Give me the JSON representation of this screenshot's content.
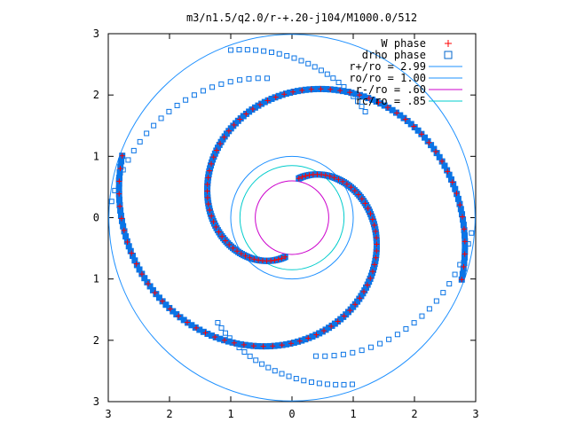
{
  "chart_data": {
    "type": "scatter",
    "title": "m3/n1.5/q2.0/r-+.20-j104/M1000.0/512",
    "xlim": [
      -3,
      3
    ],
    "ylim": [
      -3,
      3
    ],
    "x_ticks": [
      -3,
      -2,
      -1,
      0,
      1,
      2,
      3
    ],
    "y_ticks": [
      -3,
      -2,
      -1,
      0,
      1,
      2,
      3
    ],
    "x_tick_labels": [
      "3",
      "2",
      "1",
      "0",
      "1",
      "2",
      "3"
    ],
    "y_tick_labels": [
      "3",
      "2",
      "1",
      "0",
      "1",
      "2",
      "3"
    ],
    "grid": false,
    "legend_position": "top-right",
    "legend": [
      {
        "label": "W phase",
        "kind": "plus",
        "color": "#ff0000"
      },
      {
        "label": "drho phase",
        "kind": "square",
        "color": "#0066cc"
      },
      {
        "label": "r+/ro = 2.99",
        "kind": "line",
        "color": "#1e90ff",
        "radius": 2.99
      },
      {
        "label": "ro/ro = 1.00",
        "kind": "line",
        "color": "#1e90ff",
        "radius": 1.0
      },
      {
        "label": "r-/ro =  .60",
        "kind": "line",
        "color": "#cc00cc",
        "radius": 0.6
      },
      {
        "label": "rc/ro =  .85",
        "kind": "line",
        "color": "#00cccc",
        "radius": 0.85
      }
    ],
    "colors": {
      "w_phase": "#ff0000",
      "drho_phase": "#0a74e6",
      "axes": "#000000"
    },
    "series": [
      {
        "name": "drho phase",
        "arms": [
          {
            "r_start": 0.65,
            "r_end": 2.95,
            "theta_start_deg": 80,
            "theta_end_deg": -200
          },
          {
            "r_start": 0.65,
            "r_end": 2.95,
            "theta_start_deg": 260,
            "theta_end_deg": -20
          }
        ],
        "outer_rings": [
          {
            "r_start": 2.3,
            "r_end": 2.95,
            "theta_start_deg": 100,
            "theta_end_deg": 175
          },
          {
            "r_start": 2.1,
            "r_end": 2.9,
            "theta_start_deg": 55,
            "theta_end_deg": 110
          },
          {
            "r_start": 2.3,
            "r_end": 2.95,
            "theta_start_deg": 280,
            "theta_end_deg": 355
          },
          {
            "r_start": 2.1,
            "r_end": 2.9,
            "theta_start_deg": 235,
            "theta_end_deg": 290
          }
        ]
      },
      {
        "name": "W phase",
        "arms": [
          {
            "r_start": 0.65,
            "r_end": 2.95,
            "theta_start_deg": 80,
            "theta_end_deg": -200
          },
          {
            "r_start": 0.65,
            "r_end": 2.95,
            "theta_start_deg": 260,
            "theta_end_deg": -20
          }
        ]
      }
    ]
  }
}
